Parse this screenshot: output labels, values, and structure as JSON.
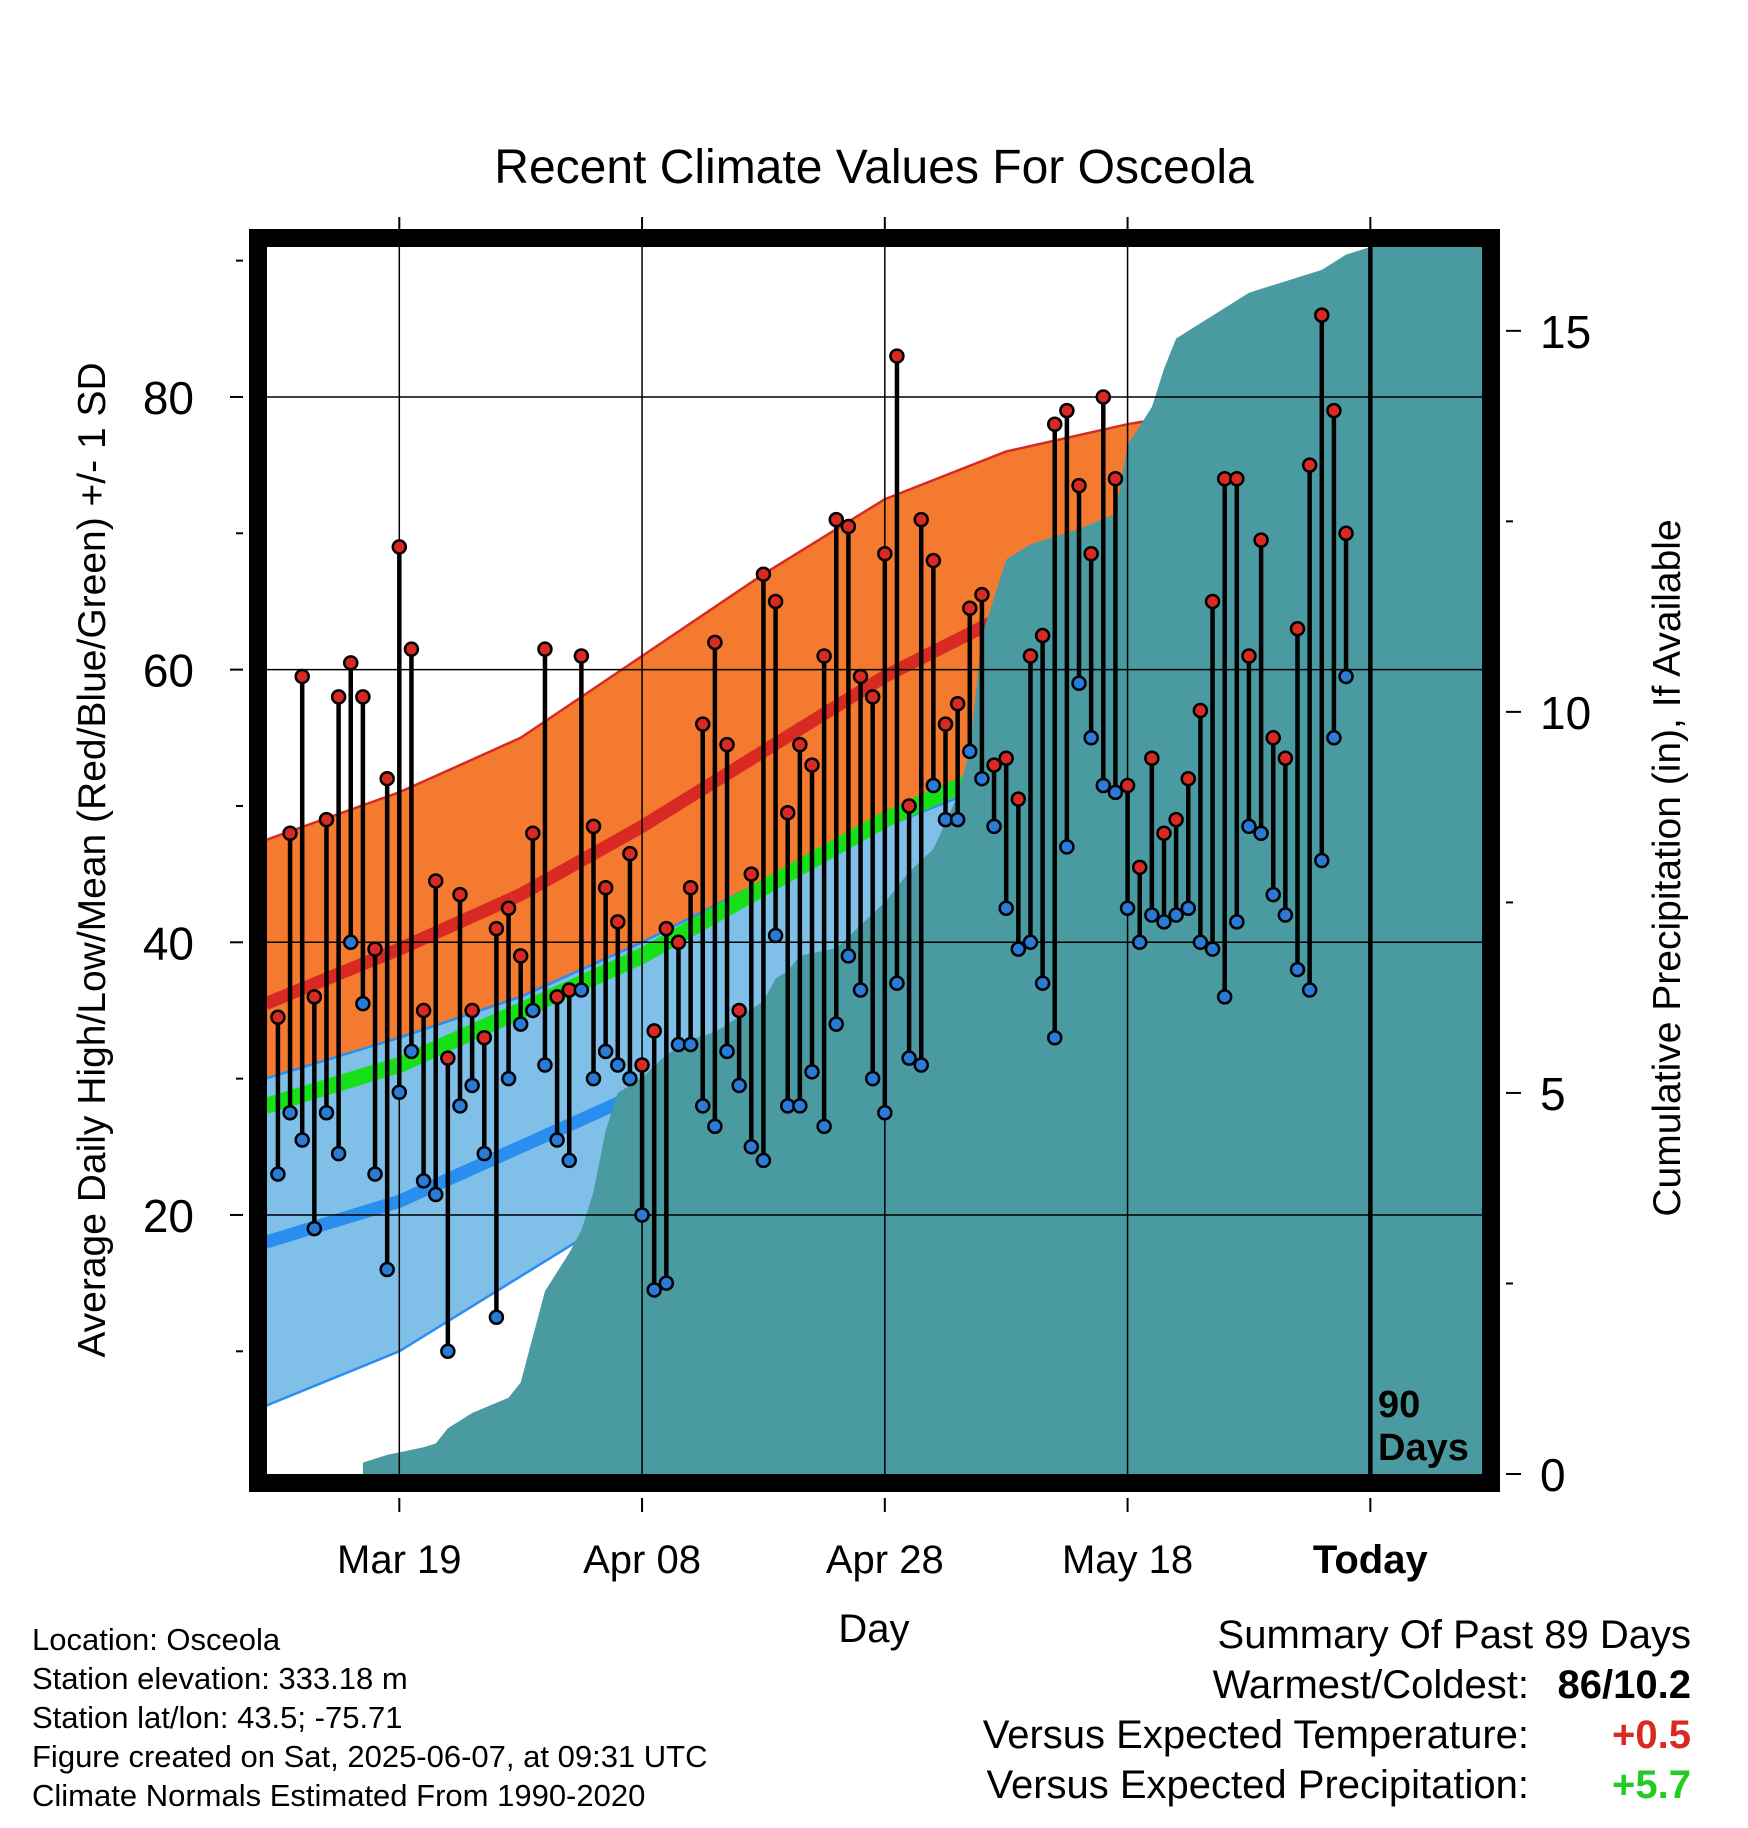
{
  "chart_data": {
    "type": "line",
    "title": "Recent Climate Values For Osceola",
    "xlabel": "Day",
    "ylabel": "Average Daily High/Low/Mean (Red/Blue/Green) +/- 1 SD",
    "y2label": "Cumulative Precipitation (in), If Available",
    "today_label": "90\nDays",
    "x_ticks": [
      {
        "day": 10,
        "label": "Mar 19"
      },
      {
        "day": 30,
        "label": "Apr 08"
      },
      {
        "day": 50,
        "label": "Apr 28"
      },
      {
        "day": 70,
        "label": "May 18"
      },
      {
        "day": 90,
        "label": "Today"
      }
    ],
    "xlim": [
      -0.9,
      99.2
    ],
    "ylim": [
      1,
      91
    ],
    "y_ticks": [
      20,
      40,
      60,
      80
    ],
    "y2lim": [
      0,
      16.1
    ],
    "y2_ticks": [
      0,
      5,
      10,
      15
    ],
    "today_day": 90,
    "normals": {
      "days": [
        -1,
        10,
        20,
        30,
        40,
        50,
        60,
        70,
        80,
        90,
        100
      ],
      "high_mean": [
        35.5,
        39.5,
        43.5,
        48.5,
        54,
        59.5,
        64,
        66.5,
        69,
        71,
        74
      ],
      "high_upper": [
        47.5,
        51,
        55,
        61,
        67,
        72.5,
        76,
        78,
        79.5,
        80.2,
        81
      ],
      "high_lower": [
        26,
        30,
        33,
        36,
        41,
        47,
        52,
        55,
        58.5,
        62.5,
        66
      ],
      "low_mean": [
        18,
        21,
        25,
        29,
        33.5,
        38,
        42,
        45,
        48,
        51,
        54
      ],
      "low_upper": [
        30,
        33,
        36,
        40,
        44.5,
        48.5,
        52,
        54.5,
        57,
        59,
        61
      ],
      "low_lower": [
        6,
        10,
        15.5,
        21,
        26,
        30.5,
        34,
        37,
        40.5,
        44,
        47.5
      ],
      "avg_mean": [
        28,
        31,
        35,
        39,
        44,
        49,
        53,
        56,
        59,
        61.5,
        64
      ]
    },
    "colors": {
      "high_band": "#f47a30",
      "high_mean": "#d82a23",
      "low_band": "#80c0e8",
      "low_mean": "#2a8ef0",
      "avg_mean": "#18e018",
      "precip": "#4a9aa2",
      "high_point": "#d82a23",
      "low_point": "#2a7ad8"
    },
    "daily": {
      "highs": [
        34.5,
        48,
        59.5,
        36,
        49,
        58,
        60.5,
        58,
        39.5,
        52,
        69,
        61.5,
        35,
        44.5,
        31.5,
        43.5,
        35,
        33,
        41,
        42.5,
        39,
        48,
        61.5,
        36,
        36.5,
        61,
        48.5,
        44,
        41.5,
        46.5,
        31,
        33.5,
        41,
        40,
        44,
        56,
        62,
        54.5,
        35,
        45,
        67,
        65,
        49.5,
        54.5,
        53,
        61,
        71,
        70.5,
        59.5,
        58,
        68.5,
        83,
        50,
        71,
        68,
        56,
        57.5,
        64.5,
        65.5,
        53,
        53.5,
        50.5,
        61,
        62.5,
        78,
        79,
        73.5,
        68.5,
        80,
        74,
        51.5,
        45.5,
        53.5,
        48,
        49,
        52,
        57,
        65,
        74,
        74,
        61,
        69.5,
        55,
        53.5,
        63,
        75,
        86,
        79,
        70
      ],
      "lows": [
        23,
        27.5,
        25.5,
        19,
        27.5,
        24.5,
        40,
        35.5,
        23,
        16,
        29,
        32,
        22.5,
        21.5,
        10,
        28,
        29.5,
        24.5,
        12.5,
        30,
        34,
        35,
        31,
        25.5,
        24,
        36.5,
        30,
        32,
        31,
        30,
        20,
        14.5,
        15,
        32.5,
        32.5,
        28,
        26.5,
        32,
        29.5,
        25,
        24,
        40.5,
        28,
        28,
        30.5,
        26.5,
        34,
        39,
        36.5,
        30,
        27.5,
        37,
        31.5,
        31,
        51.5,
        49,
        49,
        54,
        52,
        48.5,
        42.5,
        39.5,
        40,
        37,
        33,
        47,
        59,
        55,
        51.5,
        51,
        42.5,
        40,
        42,
        41.5,
        42,
        42.5,
        40,
        39.5,
        36,
        41.5,
        48.5,
        48,
        43.5,
        42,
        38,
        36.5,
        46,
        55,
        59.5
      ]
    },
    "precip": {
      "points": [
        [
          7,
          0
        ],
        [
          7,
          0.15
        ],
        [
          9,
          0.25
        ],
        [
          12,
          0.35
        ],
        [
          13,
          0.4
        ],
        [
          14,
          0.6
        ],
        [
          16,
          0.8
        ],
        [
          19,
          1.0
        ],
        [
          20,
          1.2
        ],
        [
          21,
          1.8
        ],
        [
          22,
          2.4
        ],
        [
          24,
          2.9
        ],
        [
          25,
          3.2
        ],
        [
          26,
          3.7
        ],
        [
          27,
          4.5
        ],
        [
          28,
          5.0
        ],
        [
          30,
          5.2
        ],
        [
          32,
          5.5
        ],
        [
          34,
          5.7
        ],
        [
          36,
          5.8
        ],
        [
          38,
          6.0
        ],
        [
          40,
          6.2
        ],
        [
          41,
          6.5
        ],
        [
          42,
          6.6
        ],
        [
          43,
          6.8
        ],
        [
          46,
          6.9
        ],
        [
          48,
          7.2
        ],
        [
          50,
          7.5
        ],
        [
          52,
          7.9
        ],
        [
          54,
          8.2
        ],
        [
          56,
          8.9
        ],
        [
          57,
          9.5
        ],
        [
          58,
          11.0
        ],
        [
          60,
          12.0
        ],
        [
          62,
          12.2
        ],
        [
          64,
          12.3
        ],
        [
          66,
          12.4
        ],
        [
          69,
          12.6
        ],
        [
          70,
          13.5
        ],
        [
          72,
          14.0
        ],
        [
          73,
          14.5
        ],
        [
          74,
          14.9
        ],
        [
          76,
          15.1
        ],
        [
          78,
          15.3
        ],
        [
          80,
          15.5
        ],
        [
          82,
          15.6
        ],
        [
          84,
          15.7
        ],
        [
          86,
          15.8
        ],
        [
          88,
          16.0
        ],
        [
          90,
          16.1
        ],
        [
          99.2,
          16.1
        ],
        [
          99.2,
          0
        ]
      ]
    }
  },
  "footer": {
    "location": "Location: Osceola",
    "elevation": "Station elevation: 333.18 m",
    "latlon": "Station lat/lon: 43.5; -75.71",
    "created": "Figure created on Sat, 2025-06-07, at 09:31 UTC",
    "normals": "Climate Normals Estimated From 1990-2020"
  },
  "summary": {
    "title": "Summary Of Past 89 Days",
    "warm_cold_label": "Warmest/Coldest:",
    "warm_cold_value": "86/10.2",
    "temp_label": "Versus Expected Temperature:",
    "temp_value": "+0.5",
    "temp_color": "#d82a23",
    "precip_label": "Versus Expected Precipitation:",
    "precip_value": "+5.7",
    "precip_color": "#22cc22"
  }
}
